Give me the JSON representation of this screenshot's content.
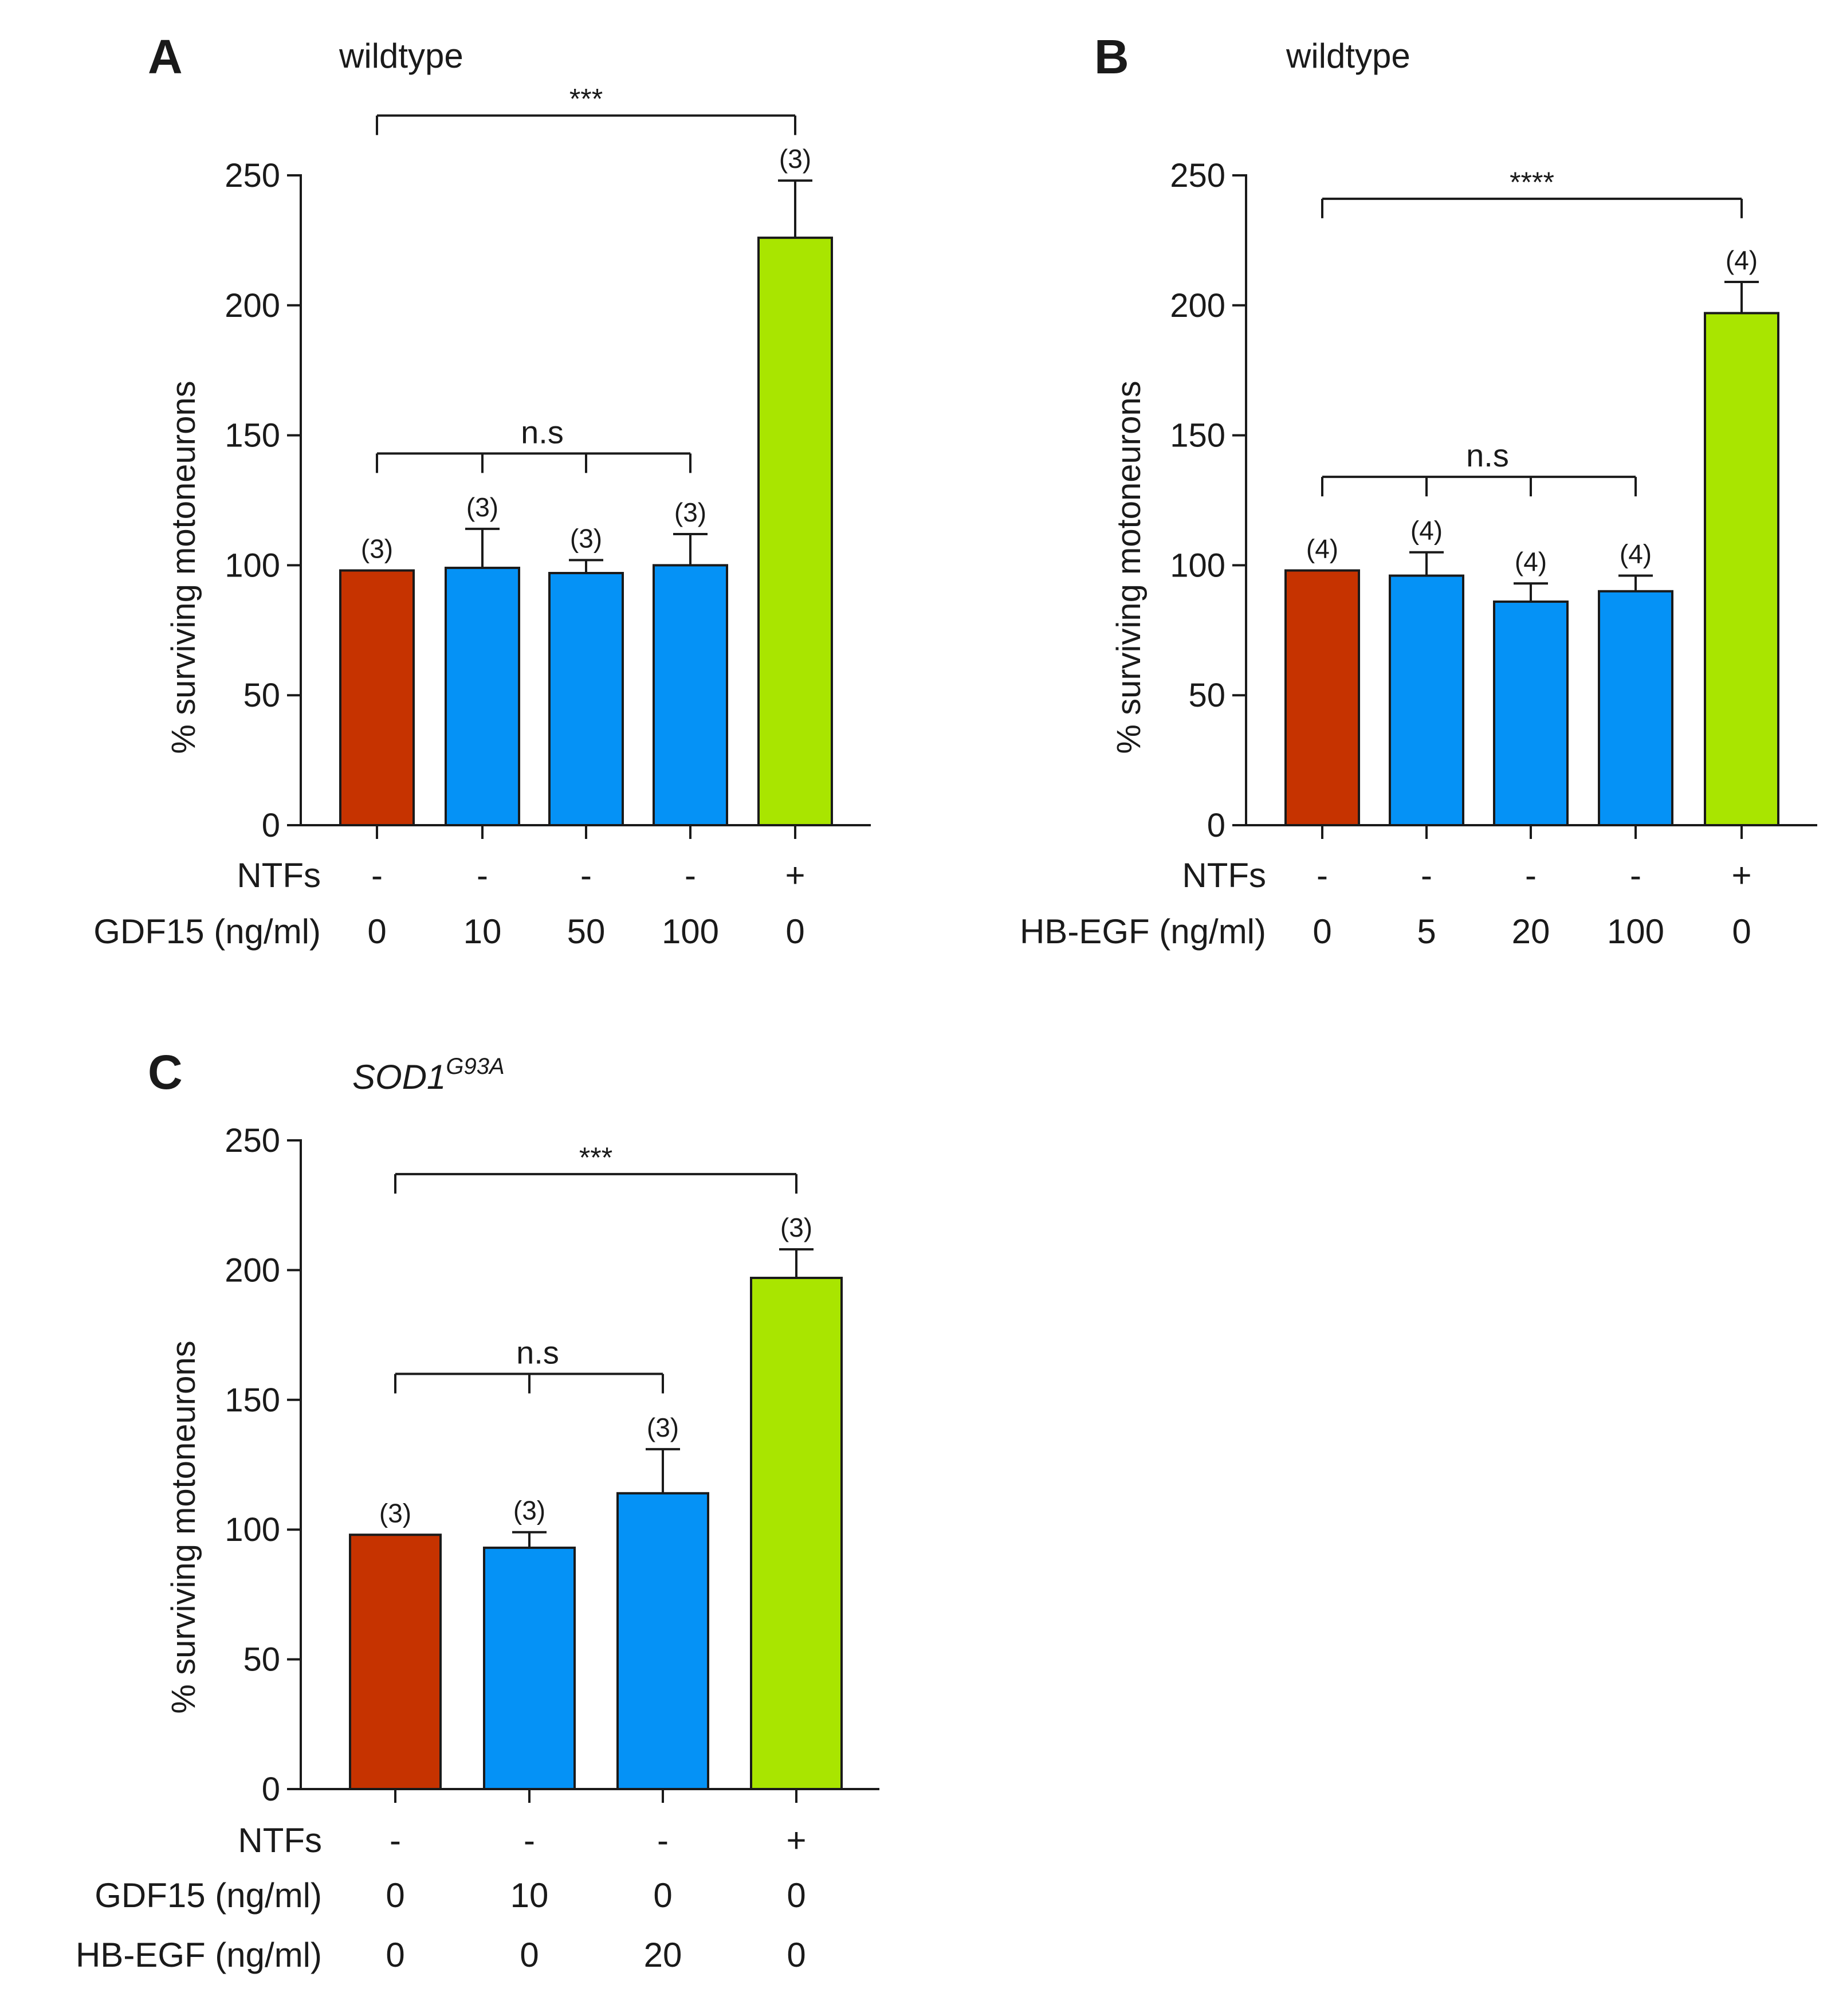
{
  "colors": {
    "control": "#c63300",
    "treated": "#0592f6",
    "ntf": "#a9e500",
    "stroke": "#1a1a1a"
  },
  "chart_data": [
    {
      "panel": "A",
      "title": "wildtype",
      "type": "bar",
      "ylabel": "% surviving motoneurons",
      "ylim": [
        0,
        250
      ],
      "yticks": [
        0,
        50,
        100,
        150,
        200,
        250
      ],
      "row_labels": [
        "NTFs",
        "GDF15 (ng/ml)"
      ],
      "bars": [
        {
          "value": 98,
          "error": 0,
          "n": "(3)",
          "color": "control",
          "rows": [
            "-",
            "0"
          ]
        },
        {
          "value": 99,
          "error": 15,
          "n": "(3)",
          "color": "treated",
          "rows": [
            "-",
            "10"
          ]
        },
        {
          "value": 97,
          "error": 5,
          "n": "(3)",
          "color": "treated",
          "rows": [
            "-",
            "50"
          ]
        },
        {
          "value": 100,
          "error": 12,
          "n": "(3)",
          "color": "treated",
          "rows": [
            "-",
            "100"
          ]
        },
        {
          "value": 226,
          "error": 22,
          "n": "(3)",
          "color": "ntf",
          "rows": [
            "+",
            "0"
          ]
        }
      ],
      "brackets": [
        {
          "label": "***",
          "from": 0,
          "to": 4,
          "y": 273,
          "ticks": [
            0,
            4
          ]
        },
        {
          "label": "n.s",
          "from": 0,
          "to": 3,
          "y": 143,
          "ticks": [
            0,
            1,
            2,
            3
          ]
        }
      ]
    },
    {
      "panel": "B",
      "title": "wildtype",
      "type": "bar",
      "ylabel": "% surviving motoneurons",
      "ylim": [
        0,
        250
      ],
      "yticks": [
        0,
        50,
        100,
        150,
        200,
        250
      ],
      "row_labels": [
        "NTFs",
        "HB-EGF (ng/ml)"
      ],
      "bars": [
        {
          "value": 98,
          "error": 0,
          "n": "(4)",
          "color": "control",
          "rows": [
            "-",
            "0"
          ]
        },
        {
          "value": 96,
          "error": 9,
          "n": "(4)",
          "color": "treated",
          "rows": [
            "-",
            "5"
          ]
        },
        {
          "value": 86,
          "error": 7,
          "n": "(4)",
          "color": "treated",
          "rows": [
            "-",
            "20"
          ]
        },
        {
          "value": 90,
          "error": 6,
          "n": "(4)",
          "color": "treated",
          "rows": [
            "-",
            "100"
          ]
        },
        {
          "value": 197,
          "error": 12,
          "n": "(4)",
          "color": "ntf",
          "rows": [
            "+",
            "0"
          ]
        }
      ],
      "brackets": [
        {
          "label": "****",
          "from": 0,
          "to": 4,
          "y": 241,
          "ticks": [
            0,
            4
          ]
        },
        {
          "label": "n.s",
          "from": 0,
          "to": 3,
          "y": 134,
          "ticks": [
            0,
            1,
            2,
            3
          ]
        }
      ]
    },
    {
      "panel": "C",
      "title": "SOD1",
      "title_sup": "G93A",
      "type": "bar",
      "ylabel": "% surviving motoneurons",
      "ylim": [
        0,
        250
      ],
      "yticks": [
        0,
        50,
        100,
        150,
        200,
        250
      ],
      "row_labels": [
        "NTFs",
        "GDF15 (ng/ml)",
        "HB-EGF (ng/ml)"
      ],
      "bars": [
        {
          "value": 98,
          "error": 0,
          "n": "(3)",
          "color": "control",
          "rows": [
            "-",
            "0",
            "0"
          ]
        },
        {
          "value": 93,
          "error": 6,
          "n": "(3)",
          "color": "treated",
          "rows": [
            "-",
            "10",
            "0"
          ]
        },
        {
          "value": 114,
          "error": 17,
          "n": "(3)",
          "color": "treated",
          "rows": [
            "-",
            "0",
            "20"
          ]
        },
        {
          "value": 197,
          "error": 11,
          "n": "(3)",
          "color": "ntf",
          "rows": [
            "+",
            "0",
            "0"
          ]
        }
      ],
      "brackets": [
        {
          "label": "***",
          "from": 0,
          "to": 3,
          "y": 237,
          "ticks": [
            0,
            3
          ]
        },
        {
          "label": "n.s",
          "from": 0,
          "to": 2,
          "y": 160,
          "ticks": [
            0,
            1,
            2
          ]
        }
      ]
    }
  ]
}
